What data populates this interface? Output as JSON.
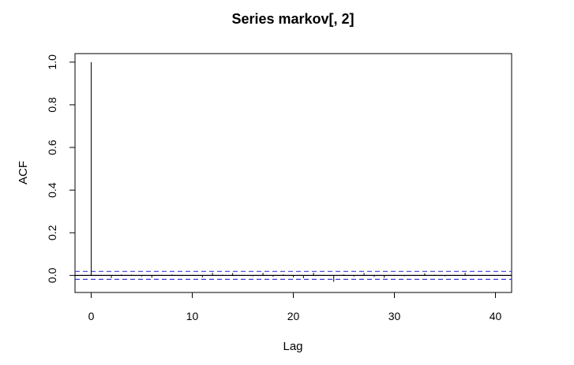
{
  "chart_data": {
    "type": "bar",
    "title": "Series  markov[, 2]",
    "xlabel": "Lag",
    "ylabel": "ACF",
    "xlim": [
      -1.6,
      41.6
    ],
    "ylim": [
      -0.08,
      1.04
    ],
    "x_ticks": [
      0,
      10,
      20,
      30,
      40
    ],
    "x_tick_labels": [
      "0",
      "10",
      "20",
      "30",
      "40"
    ],
    "y_ticks": [
      0.0,
      0.2,
      0.4,
      0.6,
      0.8,
      1.0
    ],
    "y_tick_labels": [
      "0.0",
      "0.2",
      "0.4",
      "0.6",
      "0.8",
      "1.0"
    ],
    "lags": [
      0,
      1,
      2,
      3,
      4,
      5,
      6,
      7,
      8,
      9,
      10,
      11,
      12,
      13,
      14,
      15,
      16,
      17,
      18,
      19,
      20,
      21,
      22,
      23,
      24,
      25,
      26,
      27,
      28,
      29,
      30,
      31,
      32,
      33,
      34,
      35,
      36,
      37,
      38,
      39,
      40
    ],
    "values": [
      1.0,
      0.002,
      -0.012,
      0.004,
      0.003,
      -0.005,
      -0.01,
      0.002,
      0.004,
      -0.003,
      0.002,
      -0.009,
      0.012,
      0.003,
      0.011,
      0.002,
      -0.004,
      0.012,
      -0.006,
      0.004,
      -0.009,
      -0.013,
      0.012,
      0.002,
      -0.03,
      0.004,
      -0.005,
      0.011,
      -0.007,
      -0.011,
      0.002,
      -0.004,
      -0.003,
      0.01,
      0.003,
      -0.004,
      0.002,
      0.012,
      -0.003,
      0.002,
      -0.002
    ],
    "confidence_bound": 0.0186,
    "zero_line_color": "#000000",
    "bound_color": "#3b3bd8",
    "grid": false
  }
}
